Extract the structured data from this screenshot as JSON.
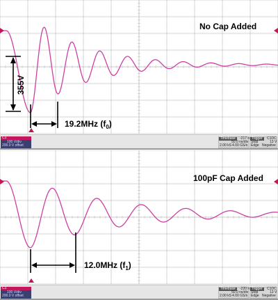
{
  "panels": [
    {
      "annotation": "No Cap Added",
      "voltage_label": "355V",
      "freq_label": "19.2MHz (f",
      "freq_sub": "0",
      "freq_close": ")",
      "status": {
        "channel": "C1",
        "ch_scale": "100 V/div",
        "ch_offset": "200.0 V offset",
        "timebase_hdr": "Timebase",
        "timebase_val": "-217 ns",
        "timebase_div": "50.0 ns/div",
        "timebase_rate": "2.00 kS",
        "timebase_srate": "4.00 GS/s",
        "trigger_hdr": "Trigger",
        "trigger_badge": "C1DC",
        "trigger_mode": "Stop",
        "trigger_level": "13 V",
        "trigger_type": "Edge",
        "trigger_slope": "Negative"
      }
    },
    {
      "annotation": "100pF Cap Added",
      "freq_label": "12.0MHz (f",
      "freq_sub": "1",
      "freq_close": ")",
      "status": {
        "channel": "C1",
        "ch_scale": "100 V/div",
        "ch_offset": "200.0 V offset",
        "timebase_hdr": "Timebase",
        "timebase_val": "-220 ns",
        "timebase_div": "50.0 ns/div",
        "timebase_rate": "2.00 kS",
        "timebase_srate": "4.00 GS/s",
        "trigger_hdr": "Trigger",
        "trigger_badge": "C1DC",
        "trigger_mode": "Stop",
        "trigger_level": "13 V",
        "trigger_type": "Edge",
        "trigger_slope": "Negative"
      }
    }
  ],
  "colors": {
    "trace": "#cc3f9f",
    "grid": "#c8c8c8",
    "channel_tab": "#c2185b",
    "channel_box": "#3b3f70"
  }
}
